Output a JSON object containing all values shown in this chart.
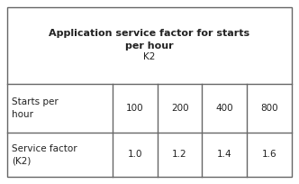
{
  "title_line1": "Application service factor for starts",
  "title_line2": "per hour",
  "title_line3": "K2",
  "row1_label": "Starts per\nhour",
  "row2_label": "Service factor\n(K2)",
  "col_values": [
    "100",
    "200",
    "400",
    "800"
  ],
  "row2_values": [
    "1.0",
    "1.2",
    "1.4",
    "1.6"
  ],
  "bg_color": "#ffffff",
  "border_color": "#666666",
  "text_color": "#222222",
  "title_fontsize": 8.0,
  "cell_fontsize": 7.5
}
